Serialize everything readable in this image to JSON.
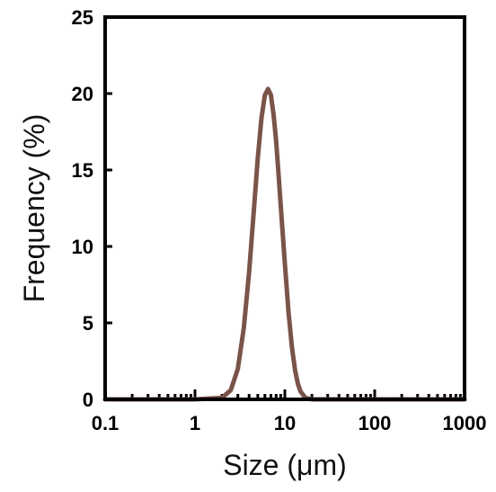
{
  "chart_data": {
    "type": "line",
    "title": "",
    "xlabel": "Size (μm)",
    "ylabel": "Frequency (%)",
    "x_scale": "log",
    "xlim": [
      0.1,
      1000
    ],
    "ylim": [
      0,
      25
    ],
    "x_ticks": [
      0.1,
      1,
      10,
      100,
      1000
    ],
    "x_tick_labels": [
      "0.1",
      "1",
      "10",
      "100",
      "1000"
    ],
    "y_ticks": [
      0,
      5,
      10,
      15,
      20,
      25
    ],
    "y_tick_labels": [
      "0",
      "5",
      "10",
      "15",
      "20",
      "25"
    ],
    "grid": false,
    "legend": "none",
    "series": [
      {
        "color": "#7a5448",
        "x": [
          0.1,
          0.5,
          1.0,
          2.0,
          2.5,
          3.0,
          3.5,
          4.0,
          4.5,
          5.0,
          5.5,
          6.0,
          6.5,
          7.0,
          7.5,
          8.0,
          8.5,
          9.0,
          10.0,
          11.0,
          12.0,
          13.0,
          14.0,
          15.0,
          17.0,
          20.0,
          30.0,
          100.0,
          1000.0
        ],
        "y": [
          0,
          0,
          0,
          0.1,
          0.6,
          2.0,
          4.7,
          8.3,
          12.2,
          15.8,
          18.4,
          19.9,
          20.3,
          19.9,
          18.6,
          16.9,
          14.8,
          12.7,
          8.9,
          5.7,
          3.4,
          1.9,
          1.0,
          0.5,
          0.1,
          0,
          0,
          0,
          0
        ]
      }
    ]
  }
}
